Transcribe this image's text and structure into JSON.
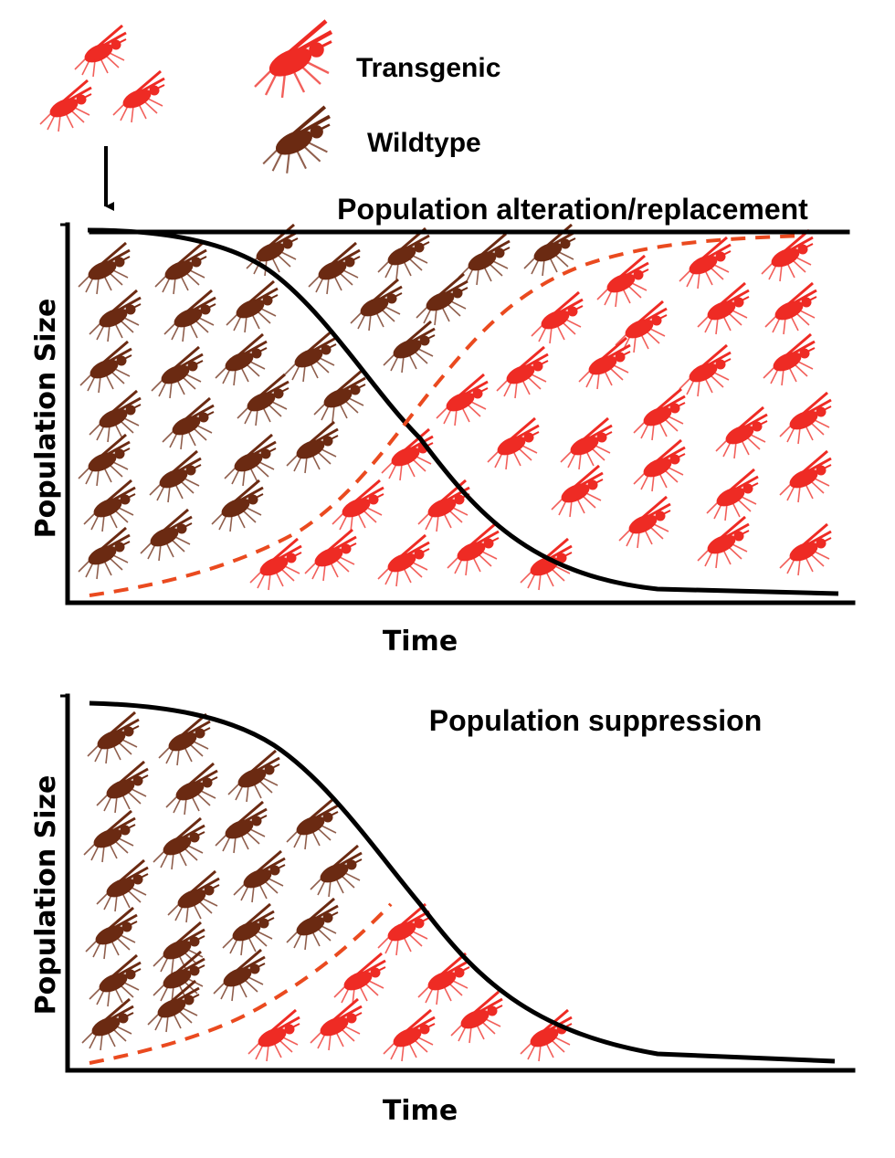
{
  "legend": {
    "transgenic_label": "Transgenic",
    "wildtype_label": "Wildtype"
  },
  "colors": {
    "transgenic": "#ee2b24",
    "wildtype": "#6b2a12",
    "transgenic_curve": "#ea4a1f",
    "wildtype_curve": "#000000"
  },
  "icons": {
    "transgenic": "red-mosquito-icon",
    "wildtype": "brown-mosquito-icon",
    "release": "down-arrow-icon"
  },
  "panels": [
    {
      "title": "Population alteration/replacement",
      "xlabel": "Time",
      "ylabel": "Population Size",
      "wildtype_trend": "decline",
      "transgenic_trend": "increase"
    },
    {
      "title": "Population suppression",
      "xlabel": "Time",
      "ylabel": "Population Size",
      "wildtype_trend": "decline",
      "transgenic_trend": "increase-then-stop"
    }
  ]
}
